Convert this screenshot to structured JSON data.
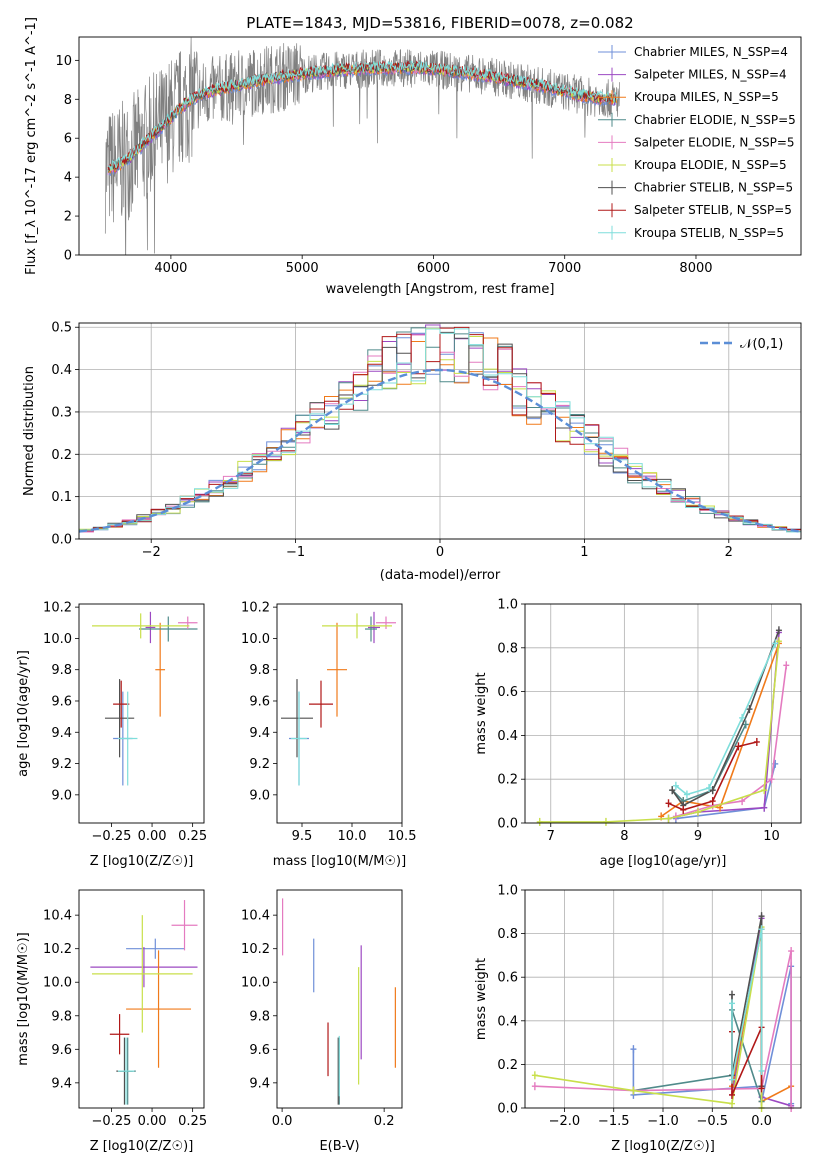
{
  "colors": {
    "chabrier_miles": "#6f8fd8",
    "salpeter_miles": "#9c49c2",
    "kroupa_miles": "#f07a1a",
    "chabrier_elodie": "#4f8a8a",
    "salpeter_elodie": "#e47bc0",
    "kroupa_elodie": "#c8df4a",
    "chabrier_stelib": "#505050",
    "salpeter_stelib": "#b01818",
    "kroupa_stelib": "#7fdedb",
    "data": "#808080",
    "normal": "#5b8ed6"
  },
  "chart_data": [
    {
      "id": "spectrum",
      "type": "line",
      "title": "PLATE=1843, MJD=53816, FIBERID=0078, z=0.082",
      "xlabel": "wavelength [Angstrom, rest frame]",
      "ylabel": "Flux [f_λ 10^-17 erg cm^-2 s^-1 A^-1]",
      "xlim": [
        3300,
        8800
      ],
      "ylim": [
        0,
        11.2
      ],
      "xticks": [
        4000,
        5000,
        6000,
        7000,
        8000
      ],
      "yticks": [
        0,
        2,
        4,
        6,
        8,
        10
      ],
      "continuum": {
        "x": [
          3500,
          3650,
          3750,
          3850,
          3950,
          4050,
          4150,
          4300,
          4500,
          4700,
          5000,
          5300,
          5600,
          5900,
          6200,
          6500,
          6800,
          7000,
          7200,
          7400
        ],
        "y": [
          4.3,
          4.8,
          5.4,
          6.1,
          6.7,
          7.4,
          8.0,
          8.4,
          8.7,
          9.0,
          9.3,
          9.5,
          9.6,
          9.6,
          9.4,
          9.1,
          8.7,
          8.4,
          8.1,
          8.0
        ]
      },
      "legend": [
        {
          "label": "Chabrier MILES, N_SSP=4",
          "color": "chabrier_miles"
        },
        {
          "label": "Salpeter MILES, N_SSP=4",
          "color": "salpeter_miles"
        },
        {
          "label": "Kroupa MILES, N_SSP=5",
          "color": "kroupa_miles"
        },
        {
          "label": "Chabrier ELODIE, N_SSP=5",
          "color": "chabrier_elodie"
        },
        {
          "label": "Salpeter ELODIE, N_SSP=5",
          "color": "salpeter_elodie"
        },
        {
          "label": "Kroupa ELODIE, N_SSP=5",
          "color": "kroupa_elodie"
        },
        {
          "label": "Chabrier STELIB, N_SSP=5",
          "color": "chabrier_stelib"
        },
        {
          "label": "Salpeter STELIB, N_SSP=5",
          "color": "salpeter_stelib"
        },
        {
          "label": "Kroupa STELIB, N_SSP=5",
          "color": "kroupa_stelib"
        }
      ]
    },
    {
      "id": "residuals",
      "type": "line",
      "xlabel": "(data-model)/error",
      "ylabel": "Normed distribution",
      "xlim": [
        -2.5,
        2.5
      ],
      "ylim": [
        0,
        0.51
      ],
      "xticks": [
        -2,
        -1,
        0,
        1,
        2
      ],
      "xtick_labels": [
        "−2",
        "−1",
        "0",
        "1",
        "2"
      ],
      "yticks": [
        0.0,
        0.1,
        0.2,
        0.3,
        0.4,
        0.5
      ],
      "grid": true,
      "legend_label": "𝒩(0,1)",
      "legend_position": "top-right",
      "bin_width": 0.1,
      "bin_start": -2.5
    },
    {
      "id": "z_age",
      "type": "scatter",
      "xlabel": "Z [log10(Z/Z☉)]",
      "ylabel": "age [log10(age/yr)]",
      "xlim": [
        -0.45,
        0.32
      ],
      "ylim": [
        8.82,
        10.22
      ],
      "xticks": [
        -0.25,
        0.0,
        0.25
      ],
      "xtick_labels": [
        "−0.25",
        "0.00",
        "0.25"
      ],
      "yticks": [
        9.0,
        9.2,
        9.4,
        9.6,
        9.8,
        10.0,
        10.2
      ],
      "points": [
        {
          "c": "chabrier_miles",
          "x": -0.18,
          "xerr": 0.06,
          "y": 9.36,
          "yerr": 0.3
        },
        {
          "c": "salpeter_miles",
          "x": -0.01,
          "xerr": 0.03,
          "y": 10.07,
          "yerr": 0.1
        },
        {
          "c": "kroupa_miles",
          "x": 0.05,
          "xerr": 0.03,
          "y": 9.8,
          "yerr": 0.3
        },
        {
          "c": "chabrier_elodie",
          "x": 0.1,
          "xerr": 0.18,
          "y": 10.06,
          "yerr": 0.08
        },
        {
          "c": "salpeter_elodie",
          "x": 0.22,
          "xerr": 0.06,
          "y": 10.1,
          "yerr": 0.04
        },
        {
          "c": "kroupa_elodie",
          "x": -0.07,
          "xerr": 0.3,
          "y": 10.08,
          "yerr": 0.08
        },
        {
          "c": "chabrier_stelib",
          "x": -0.2,
          "xerr": 0.09,
          "y": 9.49,
          "yerr": 0.25
        },
        {
          "c": "salpeter_stelib",
          "x": -0.19,
          "xerr": 0.05,
          "y": 9.58,
          "yerr": 0.15
        },
        {
          "c": "kroupa_stelib",
          "x": -0.15,
          "xerr": 0.06,
          "y": 9.36,
          "yerr": 0.3
        }
      ]
    },
    {
      "id": "mass_age",
      "type": "scatter",
      "xlabel": "mass [log10(M/M☉)]",
      "ylabel": "",
      "xlim": [
        9.25,
        10.5
      ],
      "ylim": [
        8.82,
        10.22
      ],
      "xticks": [
        9.5,
        10.0,
        10.5
      ],
      "xtick_labels": [
        "9.5",
        "10.0",
        "10.5"
      ],
      "yticks": [
        9.0,
        9.2,
        9.4,
        9.6,
        9.8,
        10.0,
        10.2
      ],
      "points": [
        {
          "c": "chabrier_miles",
          "x": 9.47,
          "xerr": 0.1,
          "y": 9.36,
          "yerr": 0.3
        },
        {
          "c": "salpeter_miles",
          "x": 10.22,
          "xerr": 0.06,
          "y": 10.07,
          "yerr": 0.1
        },
        {
          "c": "kroupa_miles",
          "x": 9.85,
          "xerr": 0.1,
          "y": 9.8,
          "yerr": 0.3
        },
        {
          "c": "chabrier_elodie",
          "x": 10.19,
          "xerr": 0.06,
          "y": 10.06,
          "yerr": 0.08
        },
        {
          "c": "salpeter_elodie",
          "x": 10.34,
          "xerr": 0.1,
          "y": 10.1,
          "yerr": 0.04
        },
        {
          "c": "kroupa_elodie",
          "x": 10.05,
          "xerr": 0.35,
          "y": 10.08,
          "yerr": 0.08
        },
        {
          "c": "chabrier_stelib",
          "x": 9.45,
          "xerr": 0.16,
          "y": 9.49,
          "yerr": 0.25
        },
        {
          "c": "salpeter_stelib",
          "x": 9.69,
          "xerr": 0.12,
          "y": 9.58,
          "yerr": 0.15
        },
        {
          "c": "kroupa_stelib",
          "x": 9.47,
          "xerr": 0.08,
          "y": 9.36,
          "yerr": 0.3
        }
      ]
    },
    {
      "id": "age_weight",
      "type": "line",
      "xlabel": "age [log10(age/yr)]",
      "ylabel": "mass weight",
      "xlim": [
        6.65,
        10.4
      ],
      "ylim": [
        0,
        1.0
      ],
      "xticks": [
        7,
        8,
        9,
        10
      ],
      "yticks": [
        0.0,
        0.2,
        0.4,
        0.6,
        0.8,
        1.0
      ],
      "grid": true,
      "series": [
        {
          "c": "chabrier_miles",
          "x": [
            8.7,
            9.9,
            10.05
          ],
          "y": [
            0.02,
            0.07,
            0.27
          ]
        },
        {
          "c": "salpeter_miles",
          "x": [
            8.6,
            9.0,
            9.9,
            10.1
          ],
          "y": [
            0.02,
            0.05,
            0.07,
            0.87
          ]
        },
        {
          "c": "kroupa_miles",
          "x": [
            8.5,
            8.8,
            9.3,
            10.1
          ],
          "y": [
            0.03,
            0.1,
            0.07,
            0.82
          ]
        },
        {
          "c": "chabrier_elodie",
          "x": [
            8.65,
            8.8,
            9.2,
            9.65
          ],
          "y": [
            0.15,
            0.1,
            0.15,
            0.45
          ]
        },
        {
          "c": "salpeter_elodie",
          "x": [
            8.7,
            9.2,
            9.6,
            10.0,
            10.2
          ],
          "y": [
            0.03,
            0.08,
            0.1,
            0.2,
            0.72
          ]
        },
        {
          "c": "kroupa_elodie",
          "x": [
            6.85,
            7.75,
            8.6,
            9.0,
            9.9,
            10.1
          ],
          "y": [
            0.005,
            0.005,
            0.02,
            0.05,
            0.15,
            0.83
          ]
        },
        {
          "c": "chabrier_stelib",
          "x": [
            8.65,
            8.8,
            9.2,
            9.7,
            10.1
          ],
          "y": [
            0.15,
            0.08,
            0.15,
            0.52,
            0.88
          ]
        },
        {
          "c": "salpeter_stelib",
          "x": [
            8.6,
            8.8,
            9.2,
            9.55,
            9.8
          ],
          "y": [
            0.09,
            0.06,
            0.1,
            0.35,
            0.37
          ]
        },
        {
          "c": "kroupa_stelib",
          "x": [
            8.7,
            8.85,
            9.15,
            9.6,
            10.05
          ],
          "y": [
            0.17,
            0.13,
            0.16,
            0.48,
            0.82
          ]
        }
      ]
    },
    {
      "id": "z_mass",
      "type": "scatter",
      "xlabel": "Z [log10(Z/Z☉)]",
      "ylabel": "mass [log10(M/M☉)]",
      "xlim": [
        -0.45,
        0.32
      ],
      "ylim": [
        9.25,
        10.55
      ],
      "xticks": [
        -0.25,
        0.0,
        0.25
      ],
      "xtick_labels": [
        "−0.25",
        "0.00",
        "0.25"
      ],
      "yticks": [
        9.4,
        9.6,
        9.8,
        10.0,
        10.2,
        10.4
      ],
      "points": [
        {
          "c": "chabrier_miles",
          "x": 0.02,
          "xerr": 0.18,
          "y": 10.2,
          "yerr": 0.06
        },
        {
          "c": "salpeter_miles",
          "x": -0.05,
          "xerr": 0.33,
          "y": 10.09,
          "yerr": 0.12
        },
        {
          "c": "kroupa_miles",
          "x": 0.04,
          "xerr": 0.2,
          "y": 9.84,
          "yerr": 0.35
        },
        {
          "c": "chabrier_elodie",
          "x": -0.15,
          "xerr": 0.05,
          "y": 9.47,
          "yerr": 0.2
        },
        {
          "c": "salpeter_elodie",
          "x": 0.2,
          "xerr": 0.08,
          "y": 10.34,
          "yerr": 0.15
        },
        {
          "c": "kroupa_elodie",
          "x": -0.06,
          "xerr": 0.31,
          "y": 10.05,
          "yerr": 0.35
        },
        {
          "c": "chabrier_stelib",
          "x": -0.17,
          "xerr": 0.05,
          "y": 9.47,
          "yerr": 0.2
        },
        {
          "c": "salpeter_stelib",
          "x": -0.2,
          "xerr": 0.06,
          "y": 9.69,
          "yerr": 0.12
        },
        {
          "c": "kroupa_stelib",
          "x": -0.16,
          "xerr": 0.05,
          "y": 9.47,
          "yerr": 0.2
        }
      ]
    },
    {
      "id": "ebv_mass",
      "type": "scatter",
      "xlabel": "E(B-V)",
      "ylabel": "",
      "xlim": [
        -0.01,
        0.235
      ],
      "ylim": [
        9.25,
        10.55
      ],
      "xticks": [
        0.0,
        0.2
      ],
      "xtick_labels": [
        "0.0",
        "0.2"
      ],
      "yticks": [
        9.4,
        9.6,
        9.8,
        10.0,
        10.2,
        10.4
      ],
      "points": [
        {
          "c": "chabrier_miles",
          "x": 0.062,
          "y": 10.1,
          "yerr": 0.16
        },
        {
          "c": "salpeter_miles",
          "x": 0.155,
          "y": 9.88,
          "yerr": 0.34
        },
        {
          "c": "kroupa_miles",
          "x": 0.222,
          "y": 9.73,
          "yerr": 0.24
        },
        {
          "c": "chabrier_elodie",
          "x": 0.112,
          "y": 9.47,
          "yerr": 0.2
        },
        {
          "c": "salpeter_elodie",
          "x": 0.001,
          "y": 10.33,
          "yerr": 0.17
        },
        {
          "c": "kroupa_elodie",
          "x": 0.15,
          "y": 9.74,
          "yerr": 0.35
        },
        {
          "c": "chabrier_stelib",
          "x": 0.11,
          "y": 9.47,
          "yerr": 0.2
        },
        {
          "c": "salpeter_stelib",
          "x": 0.09,
          "y": 9.6,
          "yerr": 0.16
        },
        {
          "c": "kroupa_stelib",
          "x": 0.112,
          "y": 9.5,
          "yerr": 0.18
        }
      ]
    },
    {
      "id": "z_weight",
      "type": "line",
      "xlabel": "Z [log10(Z/Z☉)]",
      "ylabel": "mass weight",
      "xlim": [
        -2.4,
        0.4
      ],
      "ylim": [
        0,
        1.0
      ],
      "xticks": [
        -2.0,
        -1.5,
        -1.0,
        -0.5,
        0.0
      ],
      "xtick_labels": [
        "−2.0",
        "−1.5",
        "−1.0",
        "−0.5",
        "0.0"
      ],
      "yticks": [
        0.0,
        0.2,
        0.4,
        0.6,
        0.8,
        1.0
      ],
      "grid": true,
      "series": [
        {
          "c": "chabrier_miles",
          "x": [
            -1.3,
            -1.3,
            0.0,
            0.0,
            0.3,
            0.3
          ],
          "y": [
            0.27,
            0.06,
            0.1,
            0.03,
            0.65,
            0.02
          ]
        },
        {
          "c": "salpeter_miles",
          "x": [
            -0.3,
            0.0,
            0.0,
            0.3
          ],
          "y": [
            0.06,
            0.87,
            0.05,
            0.01
          ]
        },
        {
          "c": "kroupa_miles",
          "x": [
            -0.3,
            0.0,
            0.0,
            0.3
          ],
          "y": [
            0.1,
            0.82,
            0.03,
            0.1
          ]
        },
        {
          "c": "chabrier_elodie",
          "x": [
            -1.3,
            -0.3,
            -0.3,
            0.0
          ],
          "y": [
            0.08,
            0.15,
            0.45,
            0.03
          ]
        },
        {
          "c": "salpeter_elodie",
          "x": [
            -2.3,
            -1.3,
            0.0,
            0.3,
            0.3
          ],
          "y": [
            0.1,
            0.08,
            0.09,
            0.72,
            0.0
          ]
        },
        {
          "c": "kroupa_elodie",
          "x": [
            -2.3,
            -1.3,
            -0.3,
            0.0,
            0.0
          ],
          "y": [
            0.15,
            0.08,
            0.02,
            0.83,
            0.0
          ]
        },
        {
          "c": "chabrier_stelib",
          "x": [
            -0.3,
            -0.3,
            0.0,
            0.0
          ],
          "y": [
            0.52,
            0.15,
            0.88,
            0.1
          ]
        },
        {
          "c": "salpeter_stelib",
          "x": [
            -0.3,
            -0.3,
            0.0,
            0.0
          ],
          "y": [
            0.35,
            0.06,
            0.37,
            0.09
          ]
        },
        {
          "c": "kroupa_stelib",
          "x": [
            -0.3,
            -0.3,
            0.0,
            0.0
          ],
          "y": [
            0.48,
            0.13,
            0.82,
            0.17
          ]
        }
      ]
    }
  ]
}
